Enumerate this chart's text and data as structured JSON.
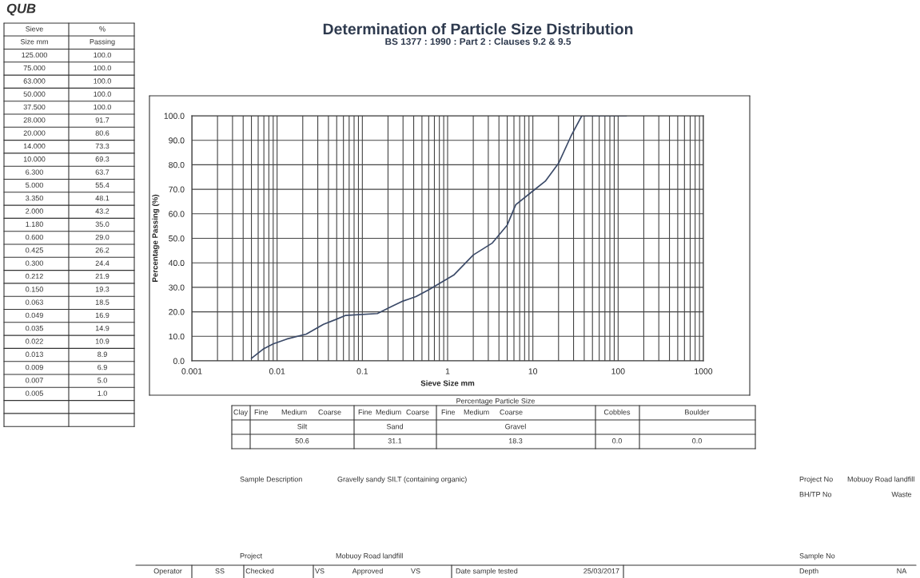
{
  "chart_data": {
    "type": "line",
    "title": "Determination of Particle Size Distribution",
    "subtitle": "BS 1377 : 1990 : Part 2 : Clauses 9.2 & 9.5",
    "xlabel": "Sieve Size mm",
    "ylabel": "Percentage Passing (%)",
    "series": [
      {
        "color": "#3b4a68",
        "x": [
          125.0,
          75.0,
          63.0,
          50.0,
          37.5,
          28.0,
          20.0,
          14.0,
          10.0,
          6.3,
          5.0,
          3.35,
          2.0,
          1.18,
          0.6,
          0.425,
          0.3,
          0.212,
          0.15,
          0.063,
          0.049,
          0.035,
          0.022,
          0.013,
          0.009,
          0.007,
          0.005
        ],
        "values": [
          100.0,
          100.0,
          100.0,
          100.0,
          100.0,
          91.7,
          80.6,
          73.3,
          69.3,
          63.7,
          55.4,
          48.1,
          43.2,
          35.0,
          29.0,
          26.2,
          24.4,
          21.9,
          19.3,
          18.5,
          16.9,
          14.9,
          10.9,
          8.9,
          6.9,
          5.0,
          1.0
        ]
      }
    ],
    "log": "x",
    "xlim": [
      0.001,
      1000
    ],
    "ylim": [
      0,
      100
    ],
    "xticks": [
      0.001,
      0.01,
      0.1,
      1,
      10,
      100,
      1000
    ],
    "yticks": [
      {
        "value": 0,
        "label": "0.0"
      },
      {
        "value": 10,
        "label": "10.0"
      },
      {
        "value": 20,
        "label": "20.0"
      },
      {
        "value": 30,
        "label": "30.0"
      },
      {
        "value": 40,
        "label": "40.0"
      },
      {
        "value": 50,
        "label": "50.0"
      },
      {
        "value": 60,
        "label": "60.0"
      },
      {
        "value": 70,
        "label": "70.0"
      },
      {
        "value": 80,
        "label": "80.0"
      },
      {
        "value": 90,
        "label": "90.0"
      },
      {
        "value": 100,
        "label": "100.0"
      }
    ],
    "grid": true,
    "marker": "none",
    "line_style": "solid",
    "annotations": [
      "QUB",
      "Sieve",
      "%",
      "Size mm",
      "Passing",
      "125.000",
      "100.0",
      "75.000",
      "100.0",
      "63.000",
      "100.0",
      "50.000",
      "100.0",
      "37.500",
      "100.0",
      "28.000",
      "91.7",
      "20.000",
      "80.6",
      "14.000",
      "73.3",
      "10.000",
      "69.3",
      "6.300",
      "63.7",
      "5.000",
      "55.4",
      "3.350",
      "48.1",
      "2.000",
      "43.2",
      "1.180",
      "35.0",
      "0.600",
      "29.0",
      "0.425",
      "26.2",
      "0.300",
      "24.4",
      "0.212",
      "21.9",
      "0.150",
      "19.3",
      "0.063",
      "18.5",
      "0.049",
      "16.9",
      "0.035",
      "14.9",
      "0.022",
      "10.9",
      "0.013",
      "8.9",
      "0.009",
      "6.9",
      "0.007",
      "5.0",
      "0.005",
      "1.0",
      "Percentage Particle Size",
      "Clay",
      "Fine",
      "Medium",
      "Coarse",
      "Fine",
      "Medium",
      "Coarse",
      "Fine",
      "Medium",
      "Coarse",
      "Cobbles",
      "Boulder",
      "Silt",
      "Sand",
      "Gravel",
      "50.6",
      "31.1",
      "18.3",
      "0.0",
      "0.0",
      "Sample Description",
      "Gravelly sandy SILT (containing organic)",
      "Project No",
      "Mobuoy Road landfill",
      "BH/TP No",
      "Waste",
      "Project",
      "Mobuoy Road landfill",
      "Sample No",
      "Operator",
      "SS",
      "Checked",
      "VS",
      "Approved",
      "VS",
      "Date sample tested",
      "25/03/2017",
      "Depth",
      "NA"
    ]
  }
}
